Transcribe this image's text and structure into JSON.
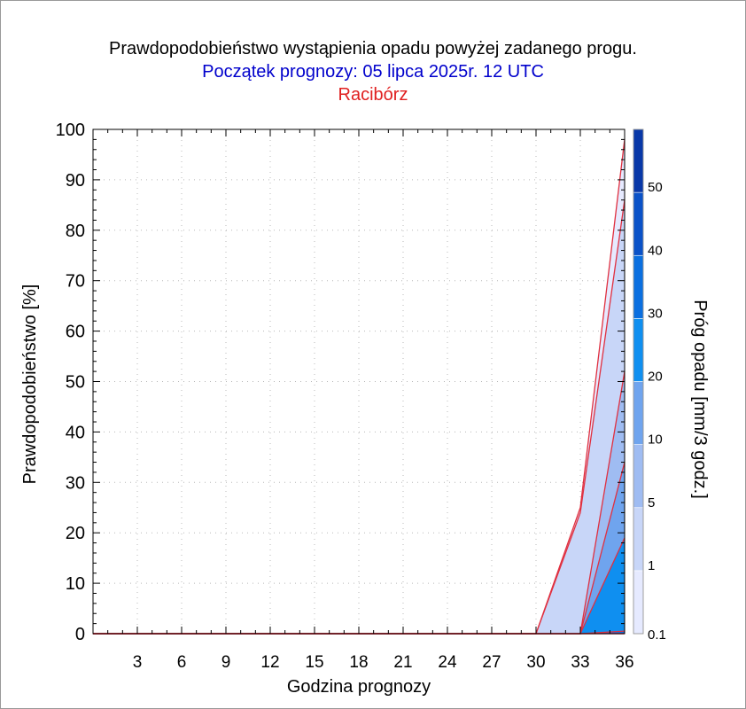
{
  "title": "Prawdopodobieństwo wystąpienia opadu powyżej zadanego progu.",
  "subtitle": "Początek prognozy: 05 lipca 2025r. 12 UTC",
  "location": "Racibórz",
  "colors": {
    "title": "#000000",
    "subtitle": "#0000cc",
    "location": "#e02020",
    "series_line": "#e03040",
    "fills": [
      "#e6eaff",
      "#c8d6f8",
      "#9fbcf2",
      "#6fa4ee",
      "#0f8ff0",
      "#0a6fe0",
      "#0a52c8",
      "#0838a8"
    ]
  },
  "chart_data": {
    "type": "area",
    "xlabel": "Godzina prognozy",
    "ylabel": "Prawdopodobieństwo [%]",
    "colorbar_label": "Próg opadu [mm/3 godz.]",
    "x": [
      0,
      3,
      6,
      9,
      12,
      15,
      18,
      21,
      24,
      27,
      30,
      33,
      36
    ],
    "xticks": [
      3,
      6,
      9,
      12,
      15,
      18,
      21,
      24,
      27,
      30,
      33,
      36
    ],
    "yticks": [
      0,
      10,
      20,
      30,
      40,
      50,
      60,
      70,
      80,
      90,
      100
    ],
    "xlim": [
      0,
      36
    ],
    "ylim": [
      0,
      100
    ],
    "grid": true,
    "thresholds": [
      0.1,
      1,
      5,
      10,
      20,
      30,
      40,
      50
    ],
    "colorbar_ticks": [
      "0.1",
      "1",
      "5",
      "10",
      "20",
      "30",
      "40",
      "50"
    ],
    "series": [
      {
        "threshold": 0.1,
        "values": [
          0,
          0,
          0,
          0,
          0,
          0,
          0,
          0,
          0,
          0,
          0,
          25,
          98
        ]
      },
      {
        "threshold": 1,
        "values": [
          0,
          0,
          0,
          0,
          0,
          0,
          0,
          0,
          0,
          0,
          0,
          24,
          86
        ]
      },
      {
        "threshold": 5,
        "values": [
          0,
          0,
          0,
          0,
          0,
          0,
          0,
          0,
          0,
          0,
          0,
          0,
          52
        ]
      },
      {
        "threshold": 10,
        "values": [
          0,
          0,
          0,
          0,
          0,
          0,
          0,
          0,
          0,
          0,
          0,
          0,
          34
        ]
      },
      {
        "threshold": 20,
        "values": [
          0,
          0,
          0,
          0,
          0,
          0,
          0,
          0,
          0,
          0,
          0,
          0,
          19
        ]
      },
      {
        "threshold": 30,
        "values": [
          0,
          0,
          0,
          0,
          0,
          0,
          0,
          0,
          0,
          0,
          0,
          0,
          0.5
        ]
      },
      {
        "threshold": 40,
        "values": [
          0,
          0,
          0,
          0,
          0,
          0,
          0,
          0,
          0,
          0,
          0,
          0,
          0
        ]
      },
      {
        "threshold": 50,
        "values": [
          0,
          0,
          0,
          0,
          0,
          0,
          0,
          0,
          0,
          0,
          0,
          0,
          0
        ]
      }
    ]
  }
}
